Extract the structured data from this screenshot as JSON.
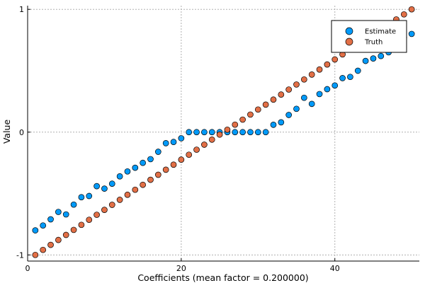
{
  "chart_data": {
    "type": "scatter",
    "xlabel": "Coefficients (mean factor = 0.200000)",
    "ylabel": "Value",
    "xlim": [
      0,
      51
    ],
    "ylim": [
      -1.05,
      1.03
    ],
    "xticks": [
      0,
      20,
      40
    ],
    "yticks": [
      -1,
      0,
      1
    ],
    "xtick_labels": [
      "0",
      "20",
      "40"
    ],
    "ytick_labels": [
      "-1",
      "0",
      "1"
    ],
    "grid": true,
    "legend_position": "top-right",
    "x": [
      1,
      2,
      3,
      4,
      5,
      6,
      7,
      8,
      9,
      10,
      11,
      12,
      13,
      14,
      15,
      16,
      17,
      18,
      19,
      20,
      21,
      22,
      23,
      24,
      25,
      26,
      27,
      28,
      29,
      30,
      31,
      32,
      33,
      34,
      35,
      36,
      37,
      38,
      39,
      40,
      41,
      42,
      43,
      44,
      45,
      46,
      47,
      48,
      49,
      50
    ],
    "series": [
      {
        "name": "Estimate",
        "color": "#009af9",
        "values": [
          -0.8,
          -0.76,
          -0.71,
          -0.65,
          -0.67,
          -0.59,
          -0.53,
          -0.52,
          -0.44,
          -0.46,
          -0.42,
          -0.36,
          -0.32,
          -0.29,
          -0.25,
          -0.22,
          -0.16,
          -0.09,
          -0.08,
          -0.05,
          0.0,
          0.0,
          0.0,
          0.0,
          0.0,
          0.0,
          0.0,
          0.0,
          0.0,
          0.0,
          0.0,
          0.06,
          0.08,
          0.14,
          0.19,
          0.28,
          0.23,
          0.31,
          0.35,
          0.38,
          0.44,
          0.45,
          0.5,
          0.58,
          0.6,
          0.62,
          0.65,
          0.72,
          0.77,
          0.8
        ]
      },
      {
        "name": "Truth",
        "color": "#e26f46",
        "values": [
          -1.0,
          -0.959,
          -0.918,
          -0.878,
          -0.837,
          -0.796,
          -0.755,
          -0.714,
          -0.673,
          -0.633,
          -0.592,
          -0.551,
          -0.51,
          -0.469,
          -0.429,
          -0.388,
          -0.347,
          -0.306,
          -0.265,
          -0.224,
          -0.184,
          -0.143,
          -0.102,
          -0.061,
          -0.02,
          0.02,
          0.061,
          0.102,
          0.143,
          0.184,
          0.224,
          0.265,
          0.306,
          0.347,
          0.388,
          0.429,
          0.469,
          0.51,
          0.551,
          0.592,
          0.633,
          0.673,
          0.714,
          0.755,
          0.796,
          0.837,
          0.878,
          0.918,
          0.959,
          1.0
        ]
      }
    ]
  }
}
